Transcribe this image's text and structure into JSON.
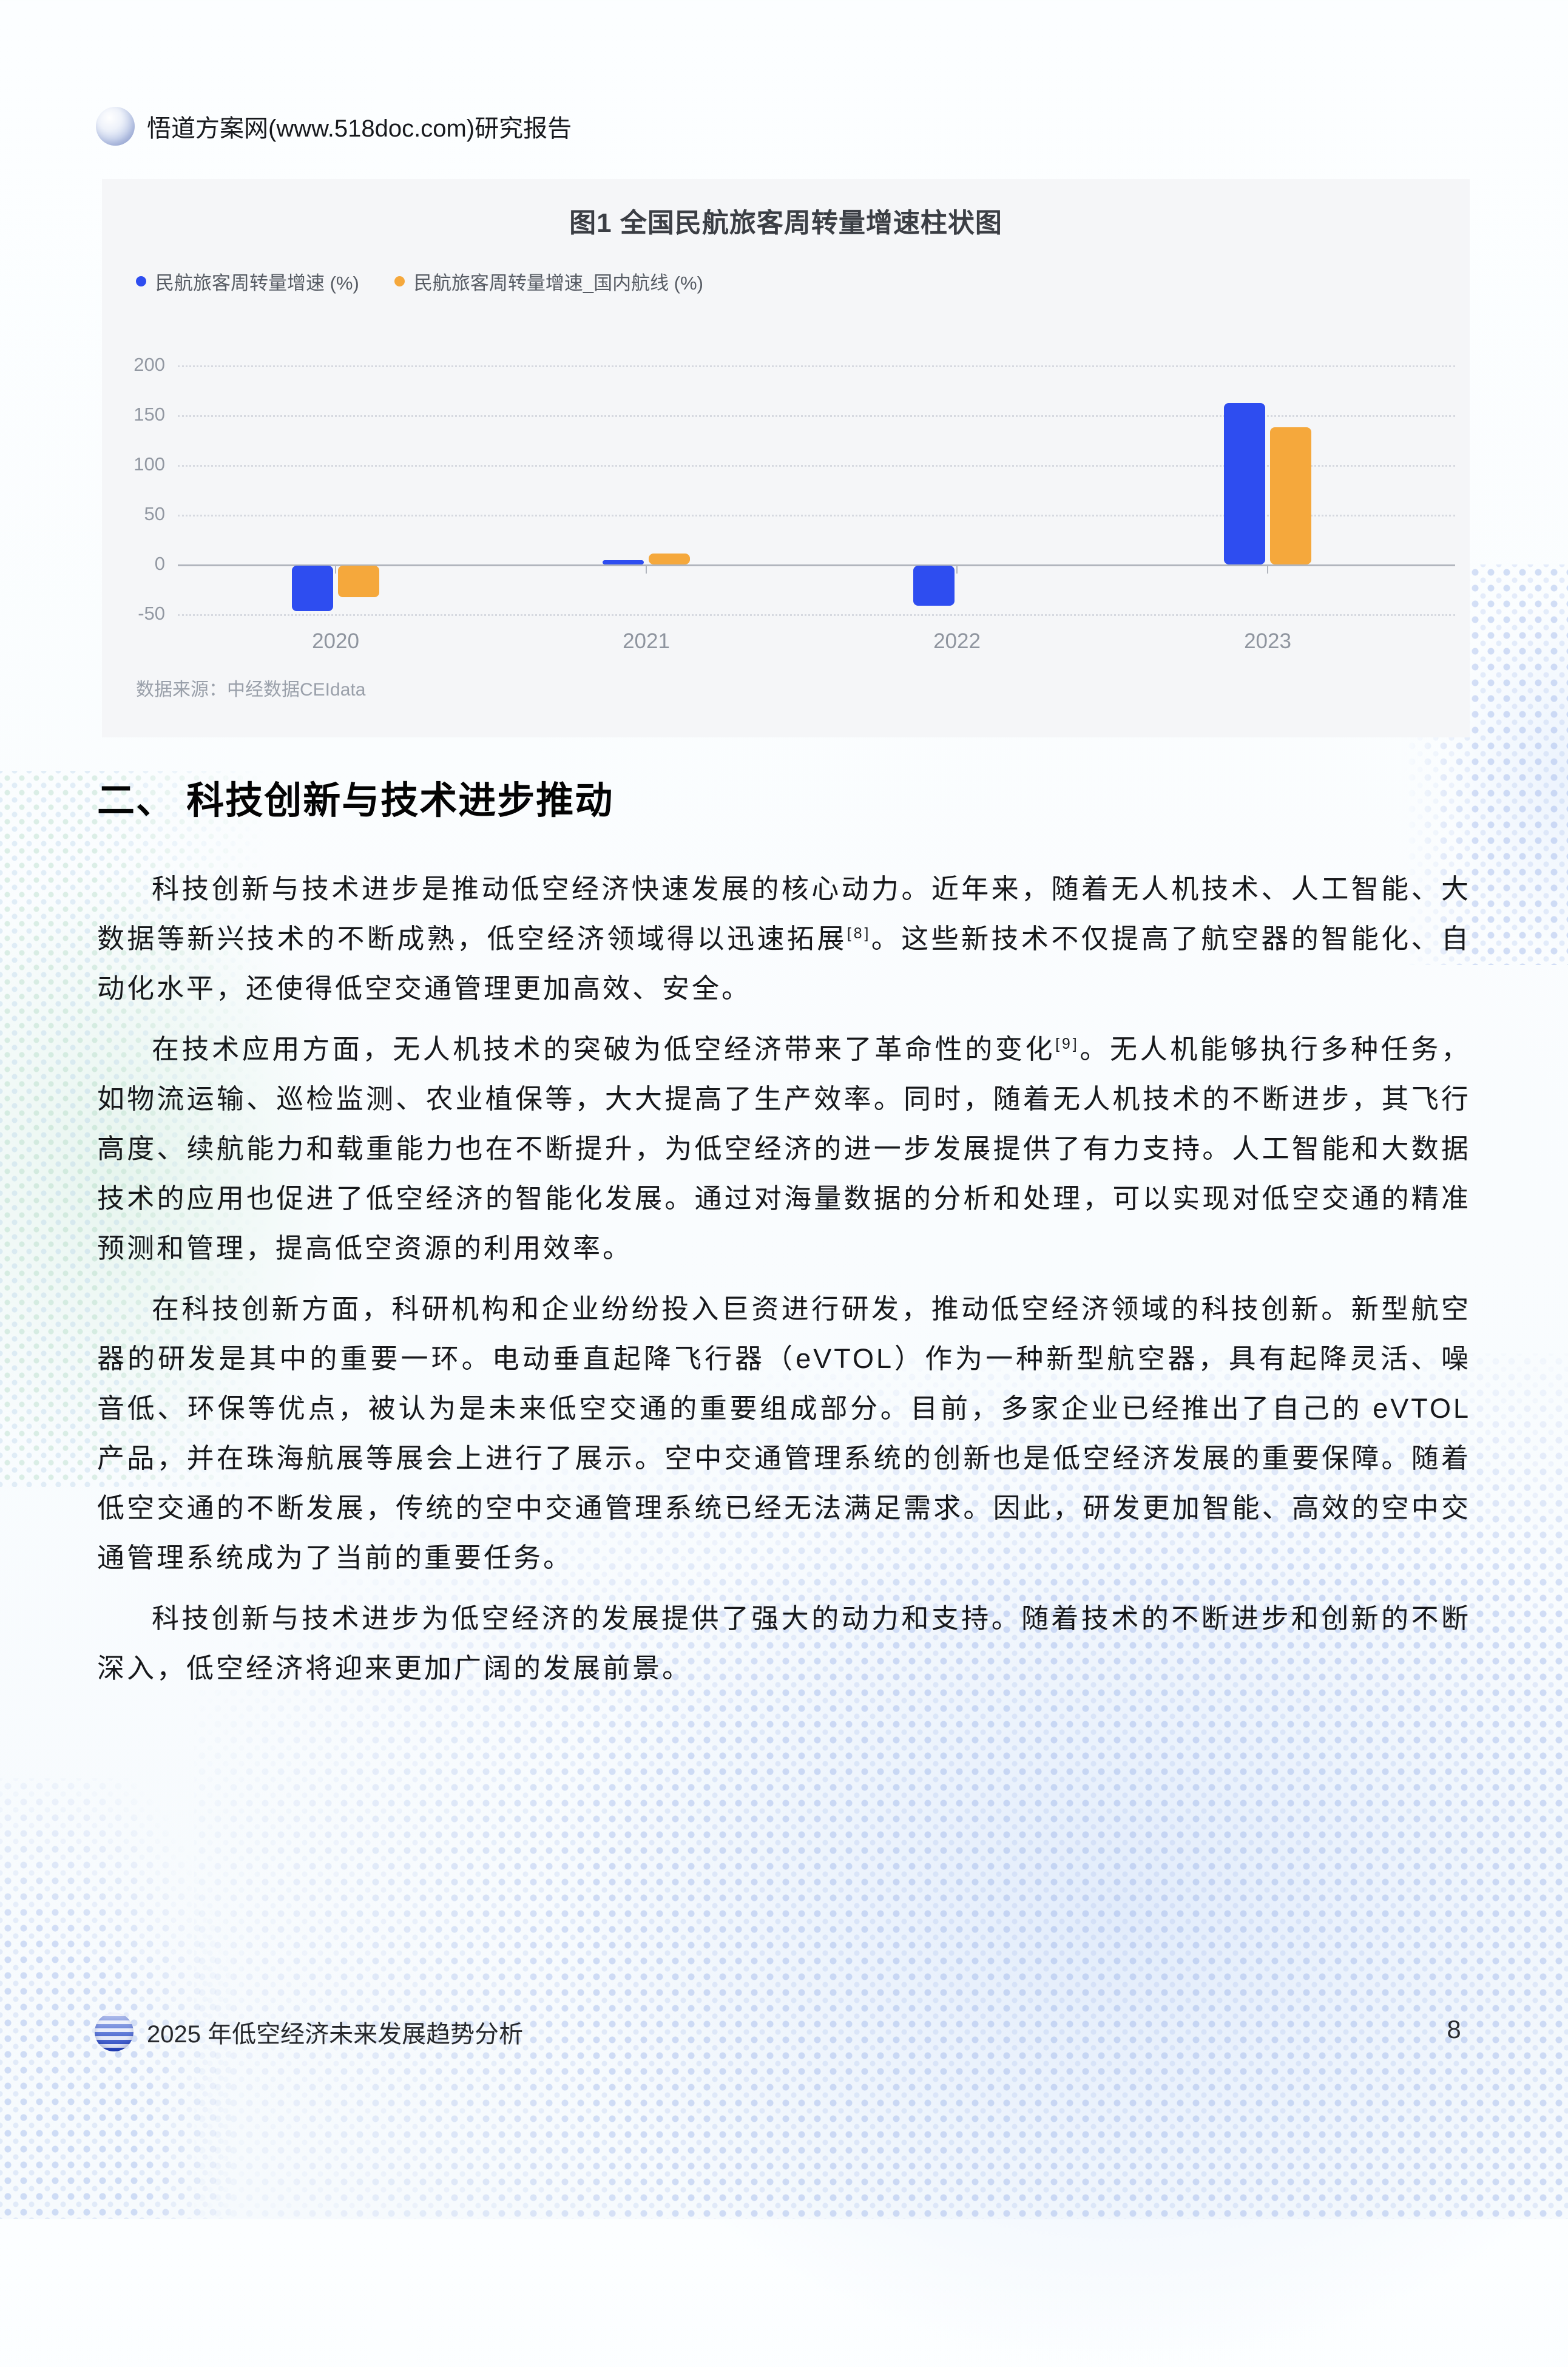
{
  "header": {
    "site": "悟道方案网(www.518doc.com)研究报告"
  },
  "chart_data": {
    "type": "bar",
    "title": "图1 全国民航旅客周转量增速柱状图",
    "categories": [
      "2020",
      "2021",
      "2022",
      "2023"
    ],
    "series": [
      {
        "name": "民航旅客周转量增速 (%)",
        "color": "#2e4df0",
        "values": [
          -46,
          4,
          -40,
          162
        ]
      },
      {
        "name": "民航旅客周转量增速_国内航线 (%)",
        "color": "#f5a83c",
        "values": [
          -32,
          11,
          null,
          138
        ]
      }
    ],
    "ylim": [
      -50,
      200
    ],
    "yticks": [
      200,
      150,
      100,
      50,
      0,
      -50
    ],
    "grid": "dotted horizontal",
    "legend_position": "top-left",
    "source": "数据来源：中经数据CEIdata"
  },
  "section": {
    "heading": "二、 科技创新与技术进步推动"
  },
  "paragraphs": [
    {
      "segments": [
        {
          "t": "科技创新与技术进步是推动低空经济快速发展的核心动力。近年来，随着无人机技术、人工智能、大数据等新兴技术的不断成熟，低空经济领域得以迅速拓展"
        },
        {
          "t": "[8]",
          "sup": true
        },
        {
          "t": "。这些新技术不仅提高了航空器的智能化、自动化水平，还使得低空交通管理更加高效、安全。"
        }
      ]
    },
    {
      "segments": [
        {
          "t": "在技术应用方面，无人机技术的突破为低空经济带来了革命性的变化"
        },
        {
          "t": "[9]",
          "sup": true
        },
        {
          "t": "。无人机能够执行多种任务，如物流运输、巡检监测、农业植保等，大大提高了生产效率。同时，随着无人机技术的不断进步，其飞行高度、续航能力和载重能力也在不断提升，为低空经济的进一步发展提供了有力支持。人工智能和大数据技术的应用也促进了低空经济的智能化发展。通过对海量数据的分析和处理，可以实现对低空交通的精准预测和管理，提高低空资源的利用效率。"
        }
      ]
    },
    {
      "segments": [
        {
          "t": "在科技创新方面，科研机构和企业纷纷投入巨资进行研发，推动低空经济领域的科技创新。新型航空器的研发是其中的重要一环。电动垂直起降飞行器（eVTOL）作为一种新型航空器，具有起降灵活、噪音低、环保等优点，被认为是未来低空交通的重要组成部分。目前，多家企业已经推出了自己的 eVTOL 产品，并在珠海航展等展会上进行了展示。空中交通管理系统的创新也是低空经济发展的重要保障。随着低空交通的不断发展，传统的空中交通管理系统已经无法满足需求。因此，研发更加智能、高效的空中交通管理系统成为了当前的重要任务。"
        }
      ]
    },
    {
      "segments": [
        {
          "t": "科技创新与技术进步为低空经济的发展提供了强大的动力和支持。随着技术的不断进步和创新的不断深入，低空经济将迎来更加广阔的发展前景。"
        }
      ]
    }
  ],
  "footer": {
    "report_title": "2025 年低空经济未来发展趋势分析",
    "page_number": "8"
  }
}
